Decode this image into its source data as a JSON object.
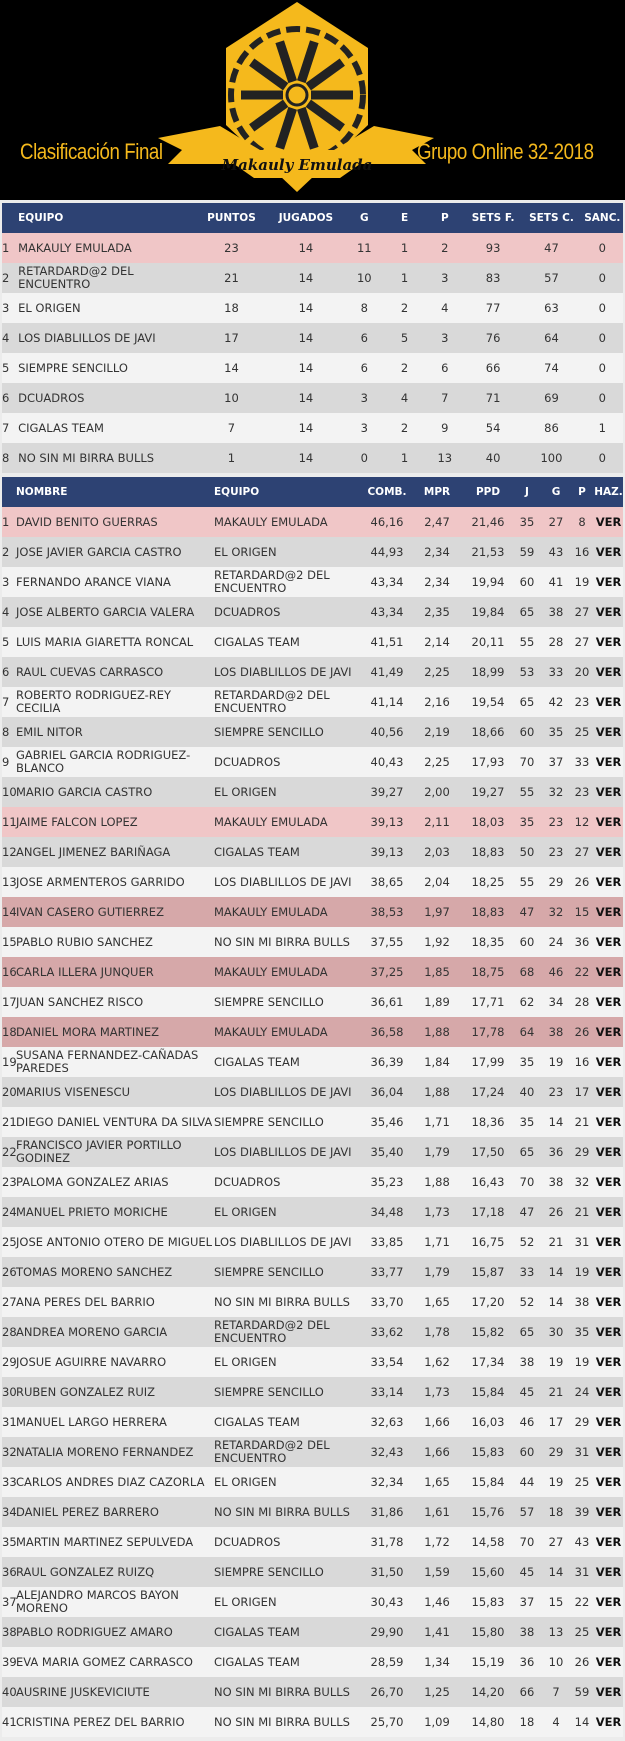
{
  "header": {
    "left_title": "Clasificación Final",
    "right_title": "Grupo Online 32-2018",
    "logo_text": "Makauly Emulada",
    "logo_color": "#f5b91c"
  },
  "colors": {
    "header_bg": "#2d4273",
    "highlight": "#f0c6c7",
    "highlight_alt": "#d6a8a9",
    "row_light": "#f3f3f3",
    "row_dark": "#d9d9d9"
  },
  "teams": {
    "columns": [
      "EQUIPO",
      "PUNTOS",
      "JUGADOS",
      "G",
      "E",
      "P",
      "SETS F.",
      "SETS C.",
      "SANC."
    ],
    "rows": [
      {
        "pos": "1",
        "name": "MAKAULY EMULADA",
        "vals": [
          "23",
          "14",
          "11",
          "1",
          "2",
          "93",
          "47",
          "0"
        ],
        "hl": true
      },
      {
        "pos": "2",
        "name": "RETARDARD@2 DEL ENCUENTRO",
        "vals": [
          "21",
          "14",
          "10",
          "1",
          "3",
          "83",
          "57",
          "0"
        ]
      },
      {
        "pos": "3",
        "name": "EL ORIGEN",
        "vals": [
          "18",
          "14",
          "8",
          "2",
          "4",
          "77",
          "63",
          "0"
        ]
      },
      {
        "pos": "4",
        "name": "LOS DIABLILLOS DE JAVI",
        "vals": [
          "17",
          "14",
          "6",
          "5",
          "3",
          "76",
          "64",
          "0"
        ]
      },
      {
        "pos": "5",
        "name": "SIEMPRE SENCILLO",
        "vals": [
          "14",
          "14",
          "6",
          "2",
          "6",
          "66",
          "74",
          "0"
        ]
      },
      {
        "pos": "6",
        "name": "DCUADROS",
        "vals": [
          "10",
          "14",
          "3",
          "4",
          "7",
          "71",
          "69",
          "0"
        ]
      },
      {
        "pos": "7",
        "name": "CIGALAS TEAM",
        "vals": [
          "7",
          "14",
          "3",
          "2",
          "9",
          "54",
          "86",
          "1"
        ]
      },
      {
        "pos": "8",
        "name": "NO SIN MI BIRRA BULLS",
        "vals": [
          "1",
          "14",
          "0",
          "1",
          "13",
          "40",
          "100",
          "0"
        ]
      }
    ]
  },
  "players": {
    "columns": [
      "NOMBRE",
      "EQUIPO",
      "COMB.",
      "MPR",
      "PPD",
      "J",
      "G",
      "P",
      "HAZ."
    ],
    "link_label": "VER",
    "rows": [
      [
        "1",
        "DAVID BENITO GUERRAS",
        "MAKAULY EMULADA",
        "46,16",
        "2,47",
        "21,46",
        "35",
        "27",
        "8"
      ],
      [
        "2",
        "JOSE JAVIER GARCIA CASTRO",
        "EL ORIGEN",
        "44,93",
        "2,34",
        "21,53",
        "59",
        "43",
        "16"
      ],
      [
        "3",
        "FERNANDO ARANCE VIANA",
        "RETARDARD@2 DEL ENCUENTRO",
        "43,34",
        "2,34",
        "19,94",
        "60",
        "41",
        "19"
      ],
      [
        "4",
        "JOSE ALBERTO GARCIA VALERA",
        "DCUADROS",
        "43,34",
        "2,35",
        "19,84",
        "65",
        "38",
        "27"
      ],
      [
        "5",
        "LUIS MARIA GIARETTA RONCAL",
        "CIGALAS TEAM",
        "41,51",
        "2,14",
        "20,11",
        "55",
        "28",
        "27"
      ],
      [
        "6",
        "RAUL CUEVAS CARRASCO",
        "LOS DIABLILLOS DE JAVI",
        "41,49",
        "2,25",
        "18,99",
        "53",
        "33",
        "20"
      ],
      [
        "7",
        "ROBERTO RODRIGUEZ-REY CECILIA",
        "RETARDARD@2 DEL ENCUENTRO",
        "41,14",
        "2,16",
        "19,54",
        "65",
        "42",
        "23"
      ],
      [
        "8",
        "EMIL NITOR",
        "SIEMPRE SENCILLO",
        "40,56",
        "2,19",
        "18,66",
        "60",
        "35",
        "25"
      ],
      [
        "9",
        "GABRIEL GARCIA RODRIGUEZ-BLANCO",
        "DCUADROS",
        "40,43",
        "2,25",
        "17,93",
        "70",
        "37",
        "33"
      ],
      [
        "10",
        "MARIO GARCIA CASTRO",
        "EL ORIGEN",
        "39,27",
        "2,00",
        "19,27",
        "55",
        "32",
        "23"
      ],
      [
        "11",
        "JAIME FALCON LOPEZ",
        "MAKAULY EMULADA",
        "39,13",
        "2,11",
        "18,03",
        "35",
        "23",
        "12"
      ],
      [
        "12",
        "ANGEL JIMENEZ BARIÑAGA",
        "CIGALAS TEAM",
        "39,13",
        "2,03",
        "18,83",
        "50",
        "23",
        "27"
      ],
      [
        "13",
        "JOSE ARMENTEROS GARRIDO",
        "LOS DIABLILLOS DE JAVI",
        "38,65",
        "2,04",
        "18,25",
        "55",
        "29",
        "26"
      ],
      [
        "14",
        "IVAN CASERO GUTIERREZ",
        "MAKAULY EMULADA",
        "38,53",
        "1,97",
        "18,83",
        "47",
        "32",
        "15"
      ],
      [
        "15",
        "PABLO RUBIO SANCHEZ",
        "NO SIN MI BIRRA BULLS",
        "37,55",
        "1,92",
        "18,35",
        "60",
        "24",
        "36"
      ],
      [
        "16",
        "CARLA ILLERA JUNQUER",
        "MAKAULY EMULADA",
        "37,25",
        "1,85",
        "18,75",
        "68",
        "46",
        "22"
      ],
      [
        "17",
        "JUAN SANCHEZ RISCO",
        "SIEMPRE SENCILLO",
        "36,61",
        "1,89",
        "17,71",
        "62",
        "34",
        "28"
      ],
      [
        "18",
        "DANIEL MORA MARTINEZ",
        "MAKAULY EMULADA",
        "36,58",
        "1,88",
        "17,78",
        "64",
        "38",
        "26"
      ],
      [
        "19",
        "SUSANA FERNANDEZ-CAÑADAS PAREDES",
        "CIGALAS TEAM",
        "36,39",
        "1,84",
        "17,99",
        "35",
        "19",
        "16"
      ],
      [
        "20",
        "MARIUS VISENESCU",
        "LOS DIABLILLOS DE JAVI",
        "36,04",
        "1,88",
        "17,24",
        "40",
        "23",
        "17"
      ],
      [
        "21",
        "DIEGO DANIEL VENTURA DA SILVA",
        "SIEMPRE SENCILLO",
        "35,46",
        "1,71",
        "18,36",
        "35",
        "14",
        "21"
      ],
      [
        "22",
        "FRANCISCO JAVIER PORTILLO GODINEZ",
        "LOS DIABLILLOS DE JAVI",
        "35,40",
        "1,79",
        "17,50",
        "65",
        "36",
        "29"
      ],
      [
        "23",
        "PALOMA GONZALEZ ARIAS",
        "DCUADROS",
        "35,23",
        "1,88",
        "16,43",
        "70",
        "38",
        "32"
      ],
      [
        "24",
        "MANUEL PRIETO MORICHE",
        "EL ORIGEN",
        "34,48",
        "1,73",
        "17,18",
        "47",
        "26",
        "21"
      ],
      [
        "25",
        "JOSE ANTONIO OTERO DE MIGUEL",
        "LOS DIABLILLOS DE JAVI",
        "33,85",
        "1,71",
        "16,75",
        "52",
        "21",
        "31"
      ],
      [
        "26",
        "TOMAS MORENO SANCHEZ",
        "SIEMPRE SENCILLO",
        "33,77",
        "1,79",
        "15,87",
        "33",
        "14",
        "19"
      ],
      [
        "27",
        "ANA PERES DEL BARRIO",
        "NO SIN MI BIRRA BULLS",
        "33,70",
        "1,65",
        "17,20",
        "52",
        "14",
        "38"
      ],
      [
        "28",
        "ANDREA MORENO GARCIA",
        "RETARDARD@2 DEL ENCUENTRO",
        "33,62",
        "1,78",
        "15,82",
        "65",
        "30",
        "35"
      ],
      [
        "29",
        "JOSUE AGUIRRE NAVARRO",
        "EL ORIGEN",
        "33,54",
        "1,62",
        "17,34",
        "38",
        "19",
        "19"
      ],
      [
        "30",
        "RUBEN GONZALEZ RUIZ",
        "SIEMPRE SENCILLO",
        "33,14",
        "1,73",
        "15,84",
        "45",
        "21",
        "24"
      ],
      [
        "31",
        "MANUEL LARGO HERRERA",
        "CIGALAS TEAM",
        "32,63",
        "1,66",
        "16,03",
        "46",
        "17",
        "29"
      ],
      [
        "32",
        "NATALIA MORENO FERNANDEZ",
        "RETARDARD@2 DEL ENCUENTRO",
        "32,43",
        "1,66",
        "15,83",
        "60",
        "29",
        "31"
      ],
      [
        "33",
        "CARLOS ANDRES DIAZ CAZORLA",
        "EL ORIGEN",
        "32,34",
        "1,65",
        "15,84",
        "44",
        "19",
        "25"
      ],
      [
        "34",
        "DANIEL PEREZ BARRERO",
        "NO SIN MI BIRRA BULLS",
        "31,86",
        "1,61",
        "15,76",
        "57",
        "18",
        "39"
      ],
      [
        "35",
        "MARTIN MARTINEZ SEPULVEDA",
        "DCUADROS",
        "31,78",
        "1,72",
        "14,58",
        "70",
        "27",
        "43"
      ],
      [
        "36",
        "RAUL GONZALEZ RUIZQ",
        "SIEMPRE SENCILLO",
        "31,50",
        "1,59",
        "15,60",
        "45",
        "14",
        "31"
      ],
      [
        "37",
        "ALEJANDRO MARCOS BAYON MORENO",
        "EL ORIGEN",
        "30,43",
        "1,46",
        "15,83",
        "37",
        "15",
        "22"
      ],
      [
        "38",
        "PABLO RODRIGUEZ AMARO",
        "CIGALAS TEAM",
        "29,90",
        "1,41",
        "15,80",
        "38",
        "13",
        "25"
      ],
      [
        "39",
        "EVA MARIA GOMEZ CARRASCO",
        "CIGALAS TEAM",
        "28,59",
        "1,34",
        "15,19",
        "36",
        "10",
        "26"
      ],
      [
        "40",
        "AUSRINE JUSKEVICIUTE",
        "NO SIN MI BIRRA BULLS",
        "26,70",
        "1,25",
        "14,20",
        "66",
        "7",
        "59"
      ],
      [
        "41",
        "CRISTINA PEREZ DEL BARRIO",
        "NO SIN MI BIRRA BULLS",
        "25,70",
        "1,09",
        "14,80",
        "18",
        "4",
        "14"
      ]
    ]
  }
}
